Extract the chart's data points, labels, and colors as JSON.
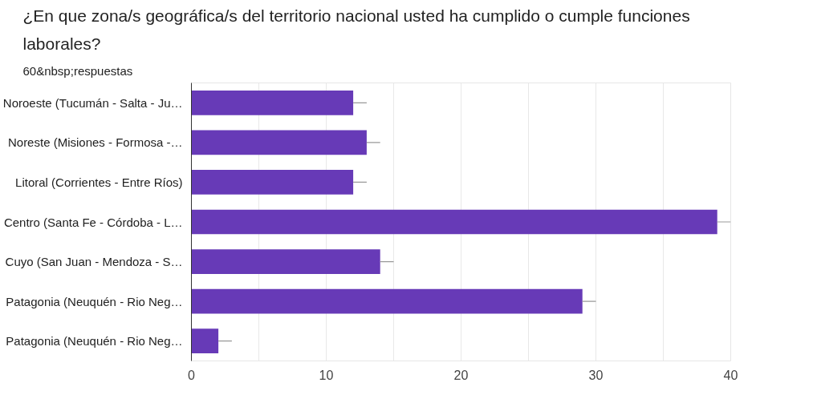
{
  "chart_data": {
    "type": "bar",
    "orientation": "horizontal",
    "title": "¿En que zona/s geográfica/s del territorio nacional usted ha cumplido o cumple funciones laborales?",
    "subtitle": "60&nbsp;respuestas",
    "categories": [
      "Noroeste (Tucumán - Salta - Ju…",
      "Noreste (Misiones - Formosa -…",
      "Litoral (Corrientes - Entre Ríos)",
      "Centro (Santa Fe - Córdoba - L…",
      "Cuyo (San Juan - Mendoza - S…",
      "Patagonia (Neuquén - Rio Neg…",
      "Patagonia (Neuquén - Rio Neg…"
    ],
    "values": [
      12,
      13,
      12,
      39,
      14,
      29,
      2
    ],
    "errors": [
      [
        12,
        13
      ],
      [
        13,
        14
      ],
      [
        12,
        13
      ],
      [
        39,
        40
      ],
      [
        14,
        15
      ],
      [
        29,
        30
      ],
      [
        2,
        3
      ]
    ],
    "color": "#673ab7",
    "xlim": [
      0,
      40
    ],
    "xticks": [
      0,
      {
        "value": 5,
        "label": null
      },
      10,
      {
        "value": 15,
        "label": null
      },
      20,
      {
        "value": 25,
        "label": null
      },
      30,
      {
        "value": 35,
        "label": null
      },
      40
    ],
    "grid": "x"
  }
}
